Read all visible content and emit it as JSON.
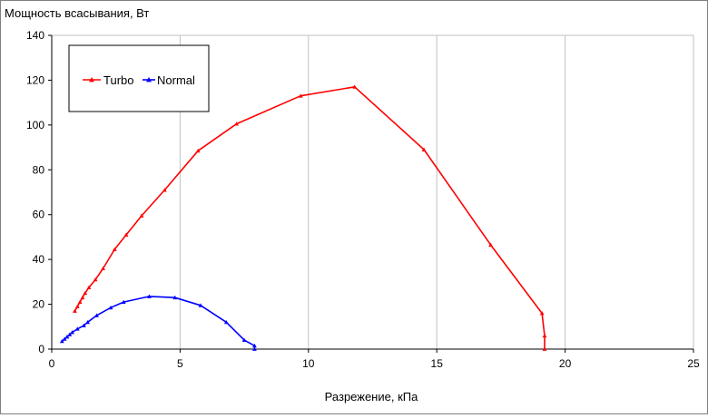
{
  "chart_data": {
    "type": "line",
    "title": "",
    "ylabel": "Мощность всасывания, Вт",
    "xlabel": "Разрежение, кПа",
    "xlim": [
      0,
      25
    ],
    "ylim": [
      0,
      140
    ],
    "x_ticks": [
      0,
      5,
      10,
      15,
      20,
      25
    ],
    "y_ticks": [
      0,
      20,
      40,
      60,
      80,
      100,
      120,
      140
    ],
    "grid": "vertical",
    "legend_position": "top-left",
    "series": [
      {
        "name": "Turbo",
        "color": "#ff0000",
        "marker": "triangle",
        "points": [
          [
            0.9,
            17
          ],
          [
            1.0,
            19
          ],
          [
            1.1,
            21
          ],
          [
            1.2,
            23
          ],
          [
            1.3,
            25
          ],
          [
            1.45,
            27.5
          ],
          [
            1.7,
            31
          ],
          [
            2.0,
            36
          ],
          [
            2.45,
            44.5
          ],
          [
            2.9,
            51
          ],
          [
            3.5,
            59.5
          ],
          [
            4.4,
            71
          ],
          [
            5.7,
            88.5
          ],
          [
            7.2,
            100.5
          ],
          [
            9.7,
            113
          ],
          [
            11.8,
            117
          ],
          [
            14.5,
            89
          ],
          [
            17.1,
            46.5
          ],
          [
            19.1,
            16
          ],
          [
            19.2,
            6
          ],
          [
            19.2,
            0
          ]
        ]
      },
      {
        "name": "Normal",
        "color": "#0000ff",
        "marker": "triangle",
        "points": [
          [
            0.4,
            3.5
          ],
          [
            0.5,
            4.5
          ],
          [
            0.6,
            5.5
          ],
          [
            0.7,
            6.5
          ],
          [
            0.8,
            7.5
          ],
          [
            1.0,
            9
          ],
          [
            1.25,
            10.5
          ],
          [
            1.4,
            12
          ],
          [
            1.75,
            15
          ],
          [
            2.3,
            18.5
          ],
          [
            2.8,
            21
          ],
          [
            3.8,
            23.5
          ],
          [
            4.8,
            23
          ],
          [
            5.8,
            19.5
          ],
          [
            6.8,
            12
          ],
          [
            7.5,
            4
          ],
          [
            7.9,
            1.5
          ],
          [
            7.9,
            0
          ]
        ]
      }
    ]
  }
}
